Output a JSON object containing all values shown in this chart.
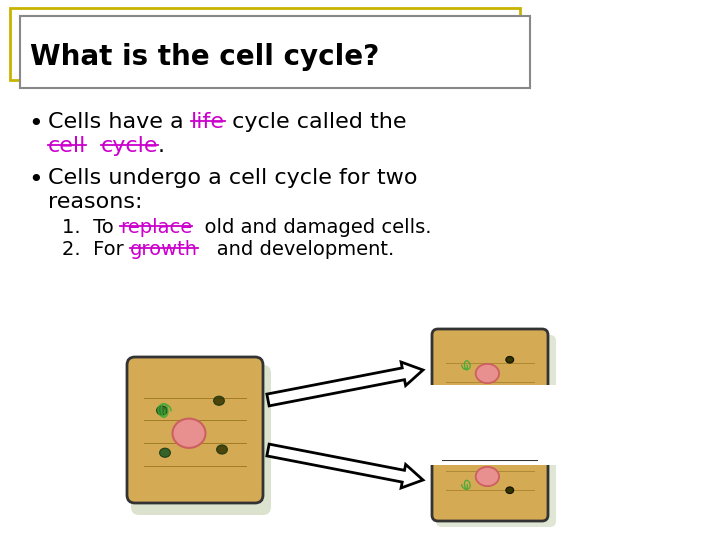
{
  "bg_color": "#ffffff",
  "title_box_outer_color": "#c8b400",
  "title_box_inner_color": "#888888",
  "title_text": "What is the cell cycle?",
  "title_color": "#000000",
  "title_fontsize": 20,
  "text_fontsize": 16,
  "sub_fontsize": 14,
  "bullet1_parts": [
    {
      "text": "Cells have a ",
      "color": "#000000"
    },
    {
      "text": "life",
      "color": "#cc00cc"
    },
    {
      "text": " cycle called the",
      "color": "#000000"
    }
  ],
  "bullet1b_parts": [
    {
      "text": "cell",
      "color": "#cc00cc"
    },
    {
      "text": "  ",
      "color": "#000000"
    },
    {
      "text": "cycle",
      "color": "#cc00cc"
    },
    {
      "text": ".",
      "color": "#000000"
    }
  ],
  "bullet2_line1": "Cells undergo a cell cycle for two",
  "bullet2_line2": "reasons:",
  "sub1_parts": [
    {
      "text": "1.  To ",
      "color": "#000000"
    },
    {
      "text": "replace",
      "color": "#cc00cc"
    },
    {
      "text": "  old and damaged cells.",
      "color": "#000000"
    }
  ],
  "sub2_parts": [
    {
      "text": "2.  For ",
      "color": "#000000"
    },
    {
      "text": "growth",
      "color": "#cc00cc"
    },
    {
      "text": "   and development.",
      "color": "#000000"
    }
  ]
}
